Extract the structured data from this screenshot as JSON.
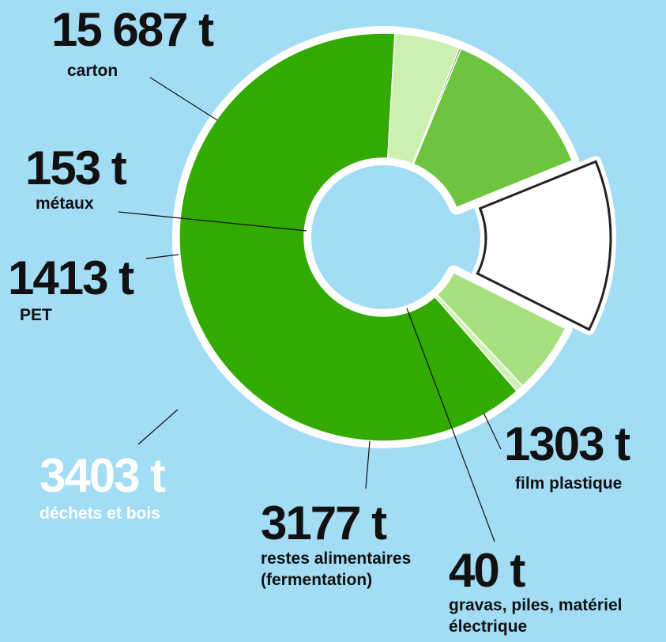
{
  "chart_data": {
    "type": "pie",
    "categories": [
      "carton",
      "film plastique",
      "gravas, piles, matériel électrique",
      "restes alimentaires (fermentation)",
      "déchets et bois",
      "PET",
      "métaux"
    ],
    "values": [
      15687,
      1303,
      40,
      3177,
      3403,
      1413,
      153
    ],
    "value_labels": [
      "15 687 t",
      "1303 t",
      "40 t",
      "3177 t",
      "3403 t",
      "1413 t",
      "153 t"
    ],
    "colors": [
      "#33aa00",
      "#ccf0b0",
      "#4e9e2a",
      "#6fc43f",
      "#ffffff",
      "#a6e07f",
      "#d4f0b8"
    ],
    "explode": [
      0,
      0,
      0,
      0,
      1,
      0,
      0
    ]
  }
}
